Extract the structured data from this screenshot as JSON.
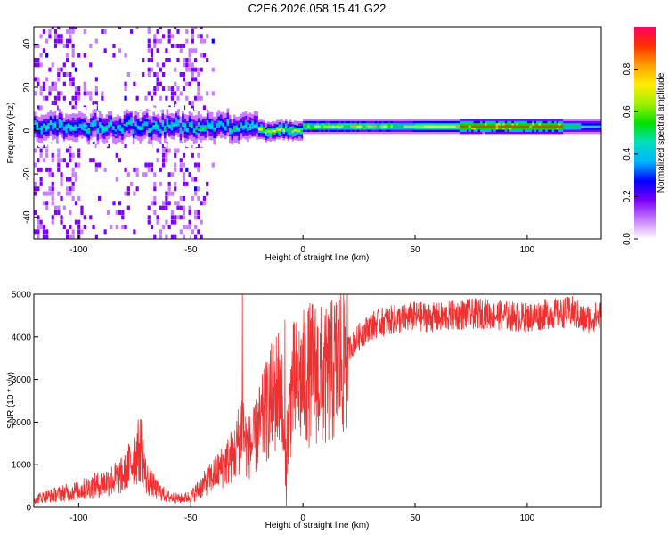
{
  "title": "C2E6.2026.058.15.41.G22",
  "colors": {
    "snr_line": "#f03030",
    "axis": "#000000",
    "colormap": [
      "#ffffff",
      "#c77dff",
      "#7b00ff",
      "#0000ff",
      "#00b4ff",
      "#00e0c0",
      "#00e000",
      "#a0f000",
      "#ffee00",
      "#ffa000",
      "#ff3000",
      "#ff0060"
    ]
  },
  "chart_data": [
    {
      "type": "heatmap",
      "name": "spectrogram",
      "xlabel": "Height of straight line (km)",
      "ylabel": "Frequency (Hz)",
      "xlim": [
        -120,
        133
      ],
      "ylim": [
        -50,
        48
      ],
      "xticks": [
        -100,
        -50,
        0,
        50,
        100
      ],
      "yticks": [
        -40,
        -20,
        0,
        20,
        40
      ],
      "colorbar": {
        "label": "Normalized spectral amplitude",
        "range": [
          0.0,
          1.0
        ],
        "ticks": [
          0.0,
          0.2,
          0.4,
          0.6,
          0.8
        ]
      },
      "features": {
        "noise_band_x_ranges": [
          [
            -120,
            -100
          ],
          [
            -70,
            -45
          ]
        ],
        "center_frequency": 1.5,
        "max_amplitude_region_x": [
          70,
          115
        ]
      }
    },
    {
      "type": "line",
      "name": "snr",
      "xlabel": "Height of straight line (km)",
      "ylabel": "SNR (10 * v/v)",
      "xlim": [
        -120,
        133
      ],
      "ylim": [
        0,
        5000
      ],
      "xticks": [
        -100,
        -50,
        0,
        50,
        100
      ],
      "yticks": [
        0,
        1000,
        2000,
        3000,
        4000,
        5000
      ],
      "series": [
        {
          "name": "SNR",
          "x": [
            -120,
            -110,
            -100,
            -90,
            -80,
            -75,
            -72,
            -70,
            -65,
            -60,
            -55,
            -50,
            -45,
            -40,
            -35,
            -30,
            -27,
            -25,
            -22,
            -20,
            -15,
            -10,
            -8,
            -5,
            0,
            5,
            10,
            15,
            20,
            25,
            30,
            35,
            40,
            45,
            50,
            60,
            70,
            80,
            90,
            100,
            110,
            115,
            120,
            125,
            133
          ],
          "y": [
            200,
            300,
            400,
            550,
            750,
            1200,
            1400,
            700,
            400,
            250,
            200,
            250,
            500,
            750,
            1000,
            1300,
            2000,
            1400,
            1500,
            1800,
            2400,
            2900,
            1000,
            2800,
            3000,
            3200,
            3000,
            3300,
            3700,
            4000,
            4250,
            4350,
            4400,
            4420,
            4480,
            4450,
            4520,
            4550,
            4500,
            4450,
            4550,
            4550,
            4600,
            4400,
            4500
          ]
        }
      ],
      "spikes": [
        {
          "x": -27,
          "y": 5000
        },
        {
          "x": -8,
          "y": 4400
        },
        {
          "x": -10,
          "y": 3200
        }
      ]
    }
  ]
}
